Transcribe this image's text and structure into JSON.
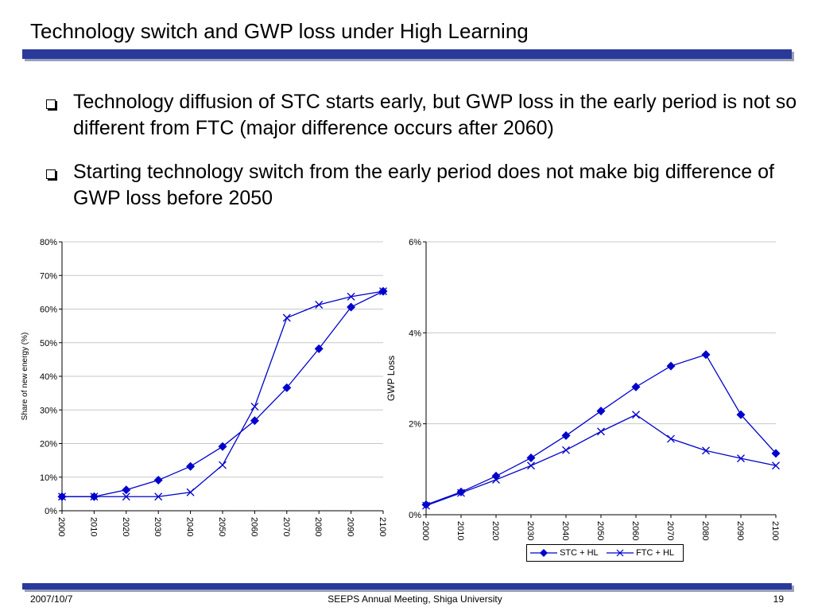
{
  "slide": {
    "title": "Technology switch and GWP loss under High Learning",
    "bullets": [
      "Technology diffusion of STC starts early, but GWP loss in the early period is not so different from FTC (major difference occurs after 2060)",
      "Starting technology switch from the early period does not make big difference of GWP loss before 2050"
    ]
  },
  "footer": {
    "date": "2007/10/7",
    "center": "SEEPS Annual Meeting, Shiga University",
    "page": "19"
  },
  "colors": {
    "series": "#0000cc",
    "rule": "#2a3a9a"
  },
  "chart_data": [
    {
      "type": "line",
      "title": "",
      "xlabel": "",
      "ylabel": "Share of new energy (%)",
      "x": [
        2000,
        2010,
        2020,
        2030,
        2040,
        2050,
        2060,
        2070,
        2080,
        2090,
        2100
      ],
      "y_ticks": [
        "0%",
        "10%",
        "20%",
        "30%",
        "40%",
        "50%",
        "60%",
        "70%",
        "80%"
      ],
      "ylim": [
        0,
        80
      ],
      "grid": true,
      "series": [
        {
          "name": "STC + HL",
          "marker": "diamond",
          "values": [
            4.2,
            4.2,
            6.2,
            9.1,
            13.2,
            19.1,
            26.8,
            36.6,
            48.2,
            60.6,
            65.3
          ]
        },
        {
          "name": "FTC + HL",
          "marker": "x",
          "values": [
            4.2,
            4.2,
            4.2,
            4.2,
            5.5,
            13.6,
            31.0,
            57.4,
            61.3,
            63.7,
            65.3
          ]
        }
      ]
    },
    {
      "type": "line",
      "title": "",
      "xlabel": "",
      "ylabel": "GWP Loss",
      "x": [
        2000,
        2010,
        2020,
        2030,
        2040,
        2050,
        2060,
        2070,
        2080,
        2090,
        2100
      ],
      "y_ticks": [
        "0%",
        "2%",
        "4%",
        "6%"
      ],
      "ylim": [
        0,
        6
      ],
      "grid": true,
      "legend": "bottom",
      "series": [
        {
          "name": "STC + HL",
          "marker": "diamond",
          "values": [
            0.22,
            0.5,
            0.85,
            1.25,
            1.74,
            2.28,
            2.81,
            3.27,
            3.52,
            2.2,
            1.35
          ]
        },
        {
          "name": "FTC + HL",
          "marker": "x",
          "values": [
            0.2,
            0.48,
            0.77,
            1.08,
            1.42,
            1.83,
            2.2,
            1.67,
            1.41,
            1.24,
            1.08
          ]
        }
      ]
    }
  ]
}
